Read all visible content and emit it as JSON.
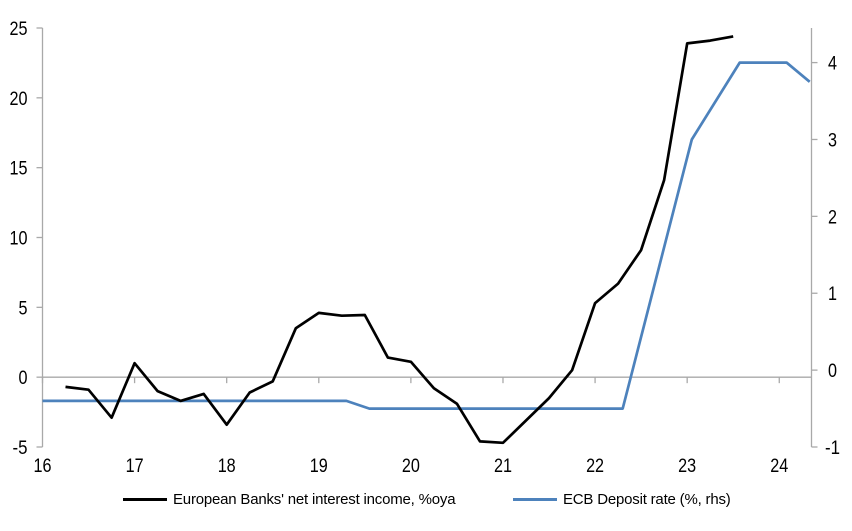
{
  "chart_data": {
    "type": "line",
    "title": "",
    "legend_position": "bottom",
    "grid": "zero-line-only",
    "axis_color": "#a9a9a9",
    "label_color": "#000000",
    "x_axis": {
      "ticks": [
        16,
        17,
        18,
        19,
        20,
        21,
        22,
        23,
        24
      ],
      "range": [
        16,
        24.35
      ]
    },
    "left_axis": {
      "ticks": [
        -5,
        0,
        5,
        10,
        15,
        20,
        25
      ],
      "range": [
        -5,
        25
      ]
    },
    "right_axis": {
      "ticks": [
        -1,
        0,
        1,
        2,
        3,
        4
      ],
      "range": [
        -1,
        4.45
      ]
    },
    "series": [
      {
        "name": "European Banks' net interest income, %oya",
        "axis": "left",
        "color": "#000000",
        "x": [
          16.25,
          16.5,
          16.75,
          17,
          17.25,
          17.5,
          17.75,
          18,
          18.25,
          18.5,
          18.75,
          19,
          19.25,
          19.5,
          19.75,
          20,
          20.25,
          20.5,
          20.75,
          21,
          21.25,
          21.5,
          21.75,
          22,
          22.25,
          22.5,
          22.75,
          23,
          23.25,
          23.5
        ],
        "values": [
          -0.7,
          -0.9,
          -2.9,
          1.0,
          -1.0,
          -1.7,
          -1.2,
          -3.4,
          -1.1,
          -0.3,
          3.5,
          4.6,
          4.4,
          4.45,
          1.4,
          1.1,
          -0.8,
          -1.9,
          -4.6,
          -4.7,
          -3.1,
          -1.5,
          0.5,
          5.3,
          6.7,
          9.1,
          14.1,
          23.9,
          24.1,
          24.4
        ]
      },
      {
        "name": "ECB Deposit rate (%, rhs)",
        "axis": "right",
        "color": "#4d82bc",
        "x": [
          16.0,
          19.3,
          19.55,
          22.3,
          23.05,
          23.57,
          24.08,
          24.33
        ],
        "values": [
          -0.4,
          -0.4,
          -0.5,
          -0.5,
          3.0,
          4.0,
          4.0,
          3.75
        ]
      }
    ]
  }
}
